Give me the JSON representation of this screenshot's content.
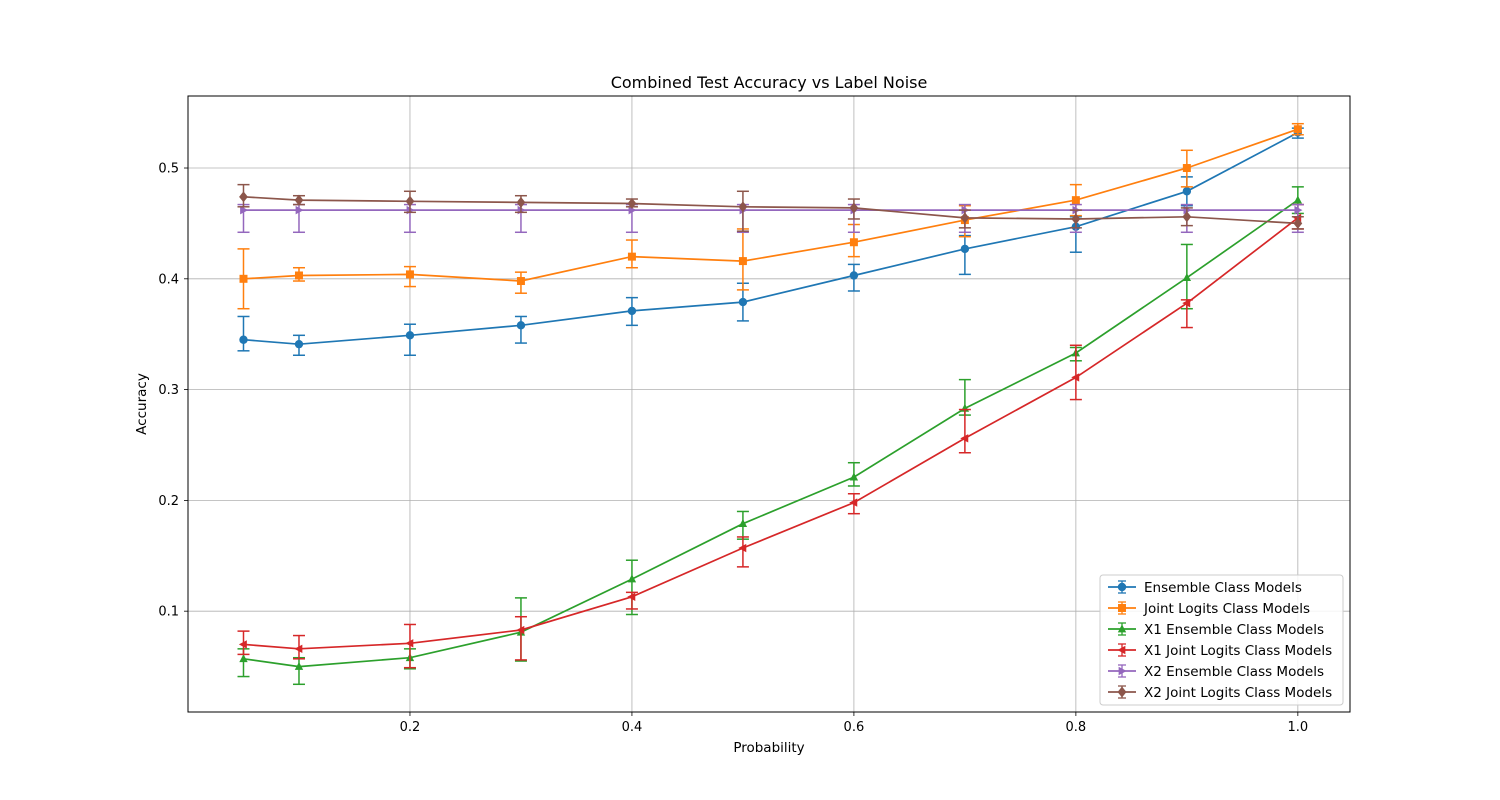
{
  "chart_data": {
    "type": "line",
    "title": "Combined Test Accuracy vs Label Noise",
    "xlabel": "Probability",
    "ylabel": "Accuracy",
    "xlim": [
      0.0,
      1.047
    ],
    "ylim": [
      0.009,
      0.565
    ],
    "xticks": [
      0.2,
      0.4,
      0.6,
      0.8,
      1.0
    ],
    "xtick_labels": [
      "0.2",
      "0.4",
      "0.6",
      "0.8",
      "1.0"
    ],
    "yticks": [
      0.1,
      0.2,
      0.3,
      0.4,
      0.5
    ],
    "ytick_labels": [
      "0.1",
      "0.2",
      "0.3",
      "0.4",
      "0.5"
    ],
    "grid": true,
    "legend_position": "lower-right",
    "x": [
      0.05,
      0.1,
      0.2,
      0.3,
      0.4,
      0.5,
      0.6,
      0.7,
      0.8,
      0.9,
      1.0
    ],
    "series": [
      {
        "name": "Ensemble Class Models",
        "color": "#1f77b4",
        "marker": "circle",
        "values": [
          0.345,
          0.341,
          0.349,
          0.358,
          0.371,
          0.379,
          0.403,
          0.427,
          0.447,
          0.479,
          0.532
        ],
        "err_low": [
          0.335,
          0.331,
          0.331,
          0.342,
          0.358,
          0.362,
          0.389,
          0.404,
          0.424,
          0.466,
          0.527
        ],
        "err_high": [
          0.366,
          0.349,
          0.359,
          0.366,
          0.383,
          0.396,
          0.413,
          0.439,
          0.456,
          0.492,
          0.536
        ]
      },
      {
        "name": "Joint Logits Class Models",
        "color": "#ff7f0e",
        "marker": "square",
        "values": [
          0.4,
          0.403,
          0.404,
          0.398,
          0.42,
          0.416,
          0.433,
          0.453,
          0.471,
          0.5,
          0.535
        ],
        "err_low": [
          0.373,
          0.398,
          0.393,
          0.387,
          0.41,
          0.39,
          0.42,
          0.438,
          0.457,
          0.483,
          0.53
        ],
        "err_high": [
          0.427,
          0.41,
          0.411,
          0.406,
          0.435,
          0.445,
          0.449,
          0.466,
          0.485,
          0.516,
          0.54
        ]
      },
      {
        "name": "X1 Ensemble Class Models",
        "color": "#2ca02c",
        "marker": "triangle-up",
        "values": [
          0.057,
          0.05,
          0.058,
          0.081,
          0.129,
          0.179,
          0.221,
          0.283,
          0.333,
          0.401,
          0.471
        ],
        "err_low": [
          0.041,
          0.034,
          0.048,
          0.055,
          0.097,
          0.165,
          0.213,
          0.277,
          0.326,
          0.373,
          0.459
        ],
        "err_high": [
          0.066,
          0.058,
          0.066,
          0.112,
          0.146,
          0.19,
          0.234,
          0.309,
          0.338,
          0.431,
          0.483
        ]
      },
      {
        "name": "X1 Joint Logits Class Models",
        "color": "#d62728",
        "marker": "triangle-left",
        "values": [
          0.07,
          0.066,
          0.071,
          0.083,
          0.113,
          0.157,
          0.198,
          0.256,
          0.311,
          0.378,
          0.455
        ],
        "err_low": [
          0.061,
          0.057,
          0.049,
          0.056,
          0.102,
          0.14,
          0.188,
          0.243,
          0.291,
          0.356,
          0.445
        ],
        "err_high": [
          0.082,
          0.078,
          0.088,
          0.095,
          0.117,
          0.167,
          0.206,
          0.282,
          0.34,
          0.381,
          0.467
        ]
      },
      {
        "name": "X2 Ensemble Class Models",
        "color": "#9467bd",
        "marker": "triangle-right",
        "values": [
          0.462,
          0.462,
          0.462,
          0.462,
          0.462,
          0.462,
          0.462,
          0.462,
          0.462,
          0.462,
          0.462
        ],
        "err_low": [
          0.442,
          0.442,
          0.442,
          0.442,
          0.442,
          0.442,
          0.442,
          0.442,
          0.442,
          0.442,
          0.442
        ],
        "err_high": [
          0.467,
          0.467,
          0.467,
          0.467,
          0.467,
          0.467,
          0.467,
          0.467,
          0.467,
          0.467,
          0.467
        ]
      },
      {
        "name": "X2 Joint Logits Class Models",
        "color": "#8c564b",
        "marker": "diamond",
        "values": [
          0.474,
          0.471,
          0.47,
          0.469,
          0.468,
          0.465,
          0.464,
          0.455,
          0.454,
          0.456,
          0.45
        ],
        "err_low": [
          0.465,
          0.467,
          0.46,
          0.46,
          0.465,
          0.443,
          0.454,
          0.446,
          0.446,
          0.448,
          0.445
        ],
        "err_high": [
          0.485,
          0.475,
          0.479,
          0.475,
          0.472,
          0.479,
          0.472,
          0.462,
          0.462,
          0.464,
          0.456
        ]
      }
    ]
  }
}
